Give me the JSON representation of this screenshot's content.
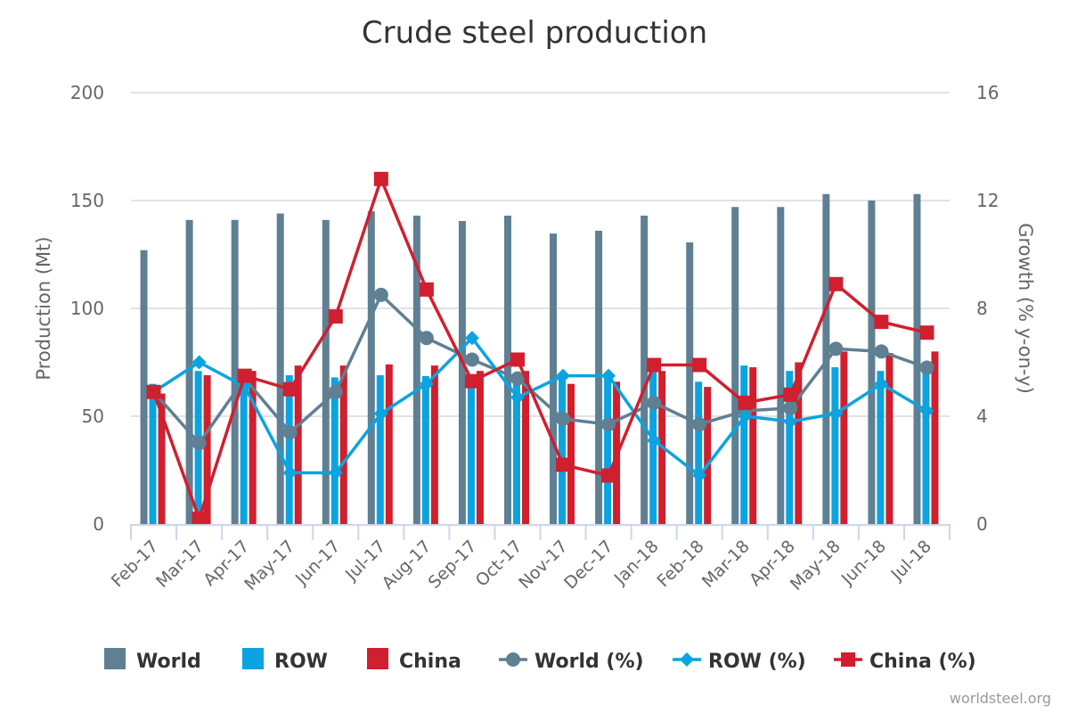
{
  "chart_data": {
    "type": "bar",
    "title": "Crude steel production",
    "xlabel": "",
    "ylabel": "Production (Mt)",
    "y2label": "Growth (% y-on-y)",
    "ylim": [
      0,
      200
    ],
    "y2lim": [
      0,
      16
    ],
    "yticks": [
      0,
      50,
      100,
      150,
      200
    ],
    "y2ticks": [
      0,
      4,
      8,
      12,
      16
    ],
    "grid": true,
    "legend_position": "bottom",
    "credit": "worldsteel.org",
    "categories": [
      "Feb-17",
      "Mar-17",
      "Apr-17",
      "May-17",
      "Jun-17",
      "Jul-17",
      "Aug-17",
      "Sep-17",
      "Oct-17",
      "Nov-17",
      "Dec-17",
      "Jan-18",
      "Feb-18",
      "Mar-18",
      "Apr-18",
      "May-18",
      "Jun-18",
      "Jul-18"
    ],
    "series": [
      {
        "name": "World",
        "kind": "bar",
        "axis": "left",
        "color": "#5f7f93",
        "values": [
          127,
          141,
          141,
          144,
          141,
          145,
          143,
          140.5,
          143,
          134.7,
          136,
          143,
          130.6,
          147,
          147,
          153,
          150,
          153
        ]
      },
      {
        "name": "ROW",
        "kind": "bar",
        "axis": "left",
        "color": "#0ba4e0",
        "values": [
          65,
          71,
          68,
          69,
          68,
          69,
          68.6,
          66.7,
          70,
          69,
          68,
          71,
          66,
          73.5,
          71,
          72.7,
          71,
          72
        ]
      },
      {
        "name": "China",
        "kind": "bar",
        "axis": "left",
        "color": "#d01f2e",
        "values": [
          60.5,
          69,
          71,
          73.5,
          73.5,
          74,
          73.5,
          71,
          71,
          65,
          66,
          71,
          63.6,
          72.7,
          75,
          80,
          79.3,
          80
        ]
      },
      {
        "name": "World (%)",
        "kind": "line",
        "marker": "circle",
        "axis": "right",
        "color": "#5f7f93",
        "values": [
          4.9,
          3.0,
          5.4,
          3.4,
          4.9,
          8.5,
          6.9,
          6.1,
          5.4,
          3.9,
          3.7,
          4.5,
          3.7,
          4.2,
          4.3,
          6.5,
          6.4,
          5.8
        ]
      },
      {
        "name": "ROW (%)",
        "kind": "line",
        "marker": "diamond",
        "axis": "right",
        "color": "#0ba4e0",
        "values": [
          4.9,
          6.0,
          5.1,
          1.9,
          1.9,
          4.1,
          5.2,
          6.9,
          4.7,
          5.5,
          5.5,
          3.1,
          1.8,
          4.0,
          3.8,
          4.1,
          5.2,
          4.2
        ]
      },
      {
        "name": "China (%)",
        "kind": "line",
        "marker": "square",
        "axis": "right",
        "color": "#d01f2e",
        "values": [
          4.9,
          0.2,
          5.5,
          5.0,
          7.7,
          12.8,
          8.7,
          5.3,
          6.1,
          2.2,
          1.8,
          5.9,
          5.9,
          4.5,
          4.8,
          8.9,
          7.5,
          7.1
        ]
      }
    ]
  }
}
